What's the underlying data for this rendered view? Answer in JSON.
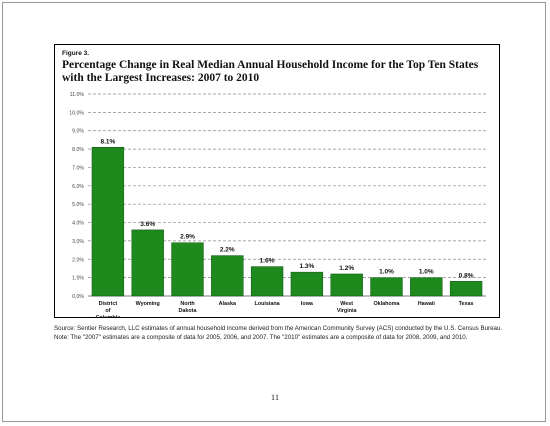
{
  "figure": {
    "label": "Figure 3.",
    "title": "Percentage Change in Real Median Annual Household Income for the Top Ten States with the Largest Increases: 2007 to 2010"
  },
  "chart_data": {
    "type": "bar",
    "categories": [
      [
        "District",
        "of",
        "Columbia"
      ],
      [
        "Wyoming"
      ],
      [
        "North",
        "Dakota"
      ],
      [
        "Alaska"
      ],
      [
        "Louisiana"
      ],
      [
        "Iowa"
      ],
      [
        "West",
        "Virginia"
      ],
      [
        "Oklahoma"
      ],
      [
        "Hawaii"
      ],
      [
        "Texas"
      ]
    ],
    "values": [
      8.1,
      3.6,
      2.9,
      2.2,
      1.6,
      1.3,
      1.2,
      1.0,
      1.0,
      0.8
    ],
    "data_labels": [
      "8.1%",
      "3.6%",
      "2.9%",
      "2.2%",
      "1.6%",
      "1.3%",
      "1.2%",
      "1.0%",
      "1.0%",
      "0.8%"
    ],
    "yticks": [
      "0.0%",
      "1.0%",
      "2.0%",
      "3.0%",
      "4.0%",
      "5.0%",
      "6.0%",
      "7.0%",
      "8.0%",
      "9.0%",
      "10.0%",
      "11.0%"
    ],
    "ylim": [
      0,
      11
    ],
    "grid": "horizontal dashed",
    "bar_color": "#1e8a1e",
    "bar_edge_color": "#0d4f0d"
  },
  "notes": {
    "source": "Source: Sentier Research, LLC estimates of annual household income derived from the American Community Survey (ACS) conducted by the U.S. Census Bureau.",
    "note": "Note: The \"2007\" estimates are a composite of data for 2005, 2006, and 2007. The \"2010\" estimates are a composite of data for 2008, 2009, and 2010."
  },
  "page_number": "11"
}
